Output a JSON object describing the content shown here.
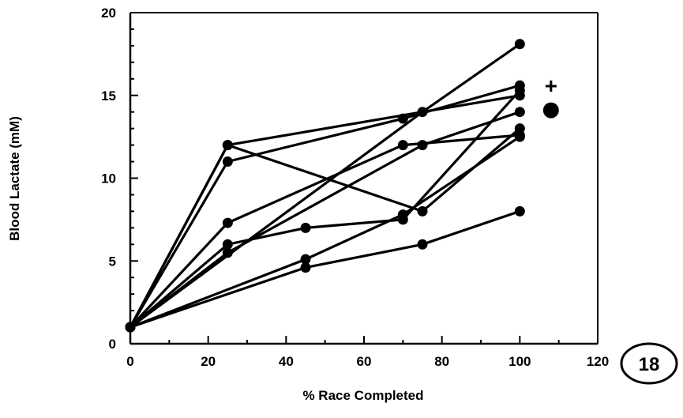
{
  "chart_data": {
    "type": "line",
    "title": "",
    "xlabel": "% Race Completed",
    "ylabel": "Blood Lactate (mM)",
    "xlim": [
      0,
      120
    ],
    "ylim": [
      0,
      20
    ],
    "x_ticks": [
      0,
      20,
      40,
      60,
      80,
      100,
      120
    ],
    "y_ticks": [
      0,
      5,
      10,
      15,
      20
    ],
    "grid": false,
    "legend": "none",
    "series": [
      {
        "x": [
          0,
          25,
          100
        ],
        "y": [
          1,
          12,
          15
        ]
      },
      {
        "x": [
          0,
          25,
          70,
          100
        ],
        "y": [
          1,
          11,
          13.6,
          15.6
        ]
      },
      {
        "x": [
          0,
          25,
          75,
          100
        ],
        "y": [
          1,
          12,
          8,
          13
        ]
      },
      {
        "x": [
          0,
          25,
          70,
          100
        ],
        "y": [
          1,
          7.3,
          12,
          12.6
        ]
      },
      {
        "x": [
          0,
          25,
          45,
          70,
          100
        ],
        "y": [
          1,
          6,
          7,
          7.5,
          15.3
        ]
      },
      {
        "x": [
          0,
          25,
          75,
          100
        ],
        "y": [
          1,
          5.5,
          12,
          14
        ]
      },
      {
        "x": [
          0,
          45,
          75,
          100
        ],
        "y": [
          1,
          4.6,
          6,
          8
        ]
      },
      {
        "x": [
          0,
          45,
          70,
          100
        ],
        "y": [
          1,
          5.1,
          7.8,
          12.5
        ]
      },
      {
        "x": [
          0,
          75,
          100
        ],
        "y": [
          1,
          14,
          18.1
        ]
      }
    ],
    "annotations": [
      {
        "text": "+",
        "x": 108,
        "y": 15.6
      },
      {
        "marker": "filled-circle",
        "x": 108,
        "y": 14.1
      }
    ]
  },
  "badge": "18",
  "colors": {
    "ink": "#000000",
    "background": "#ffffff"
  }
}
